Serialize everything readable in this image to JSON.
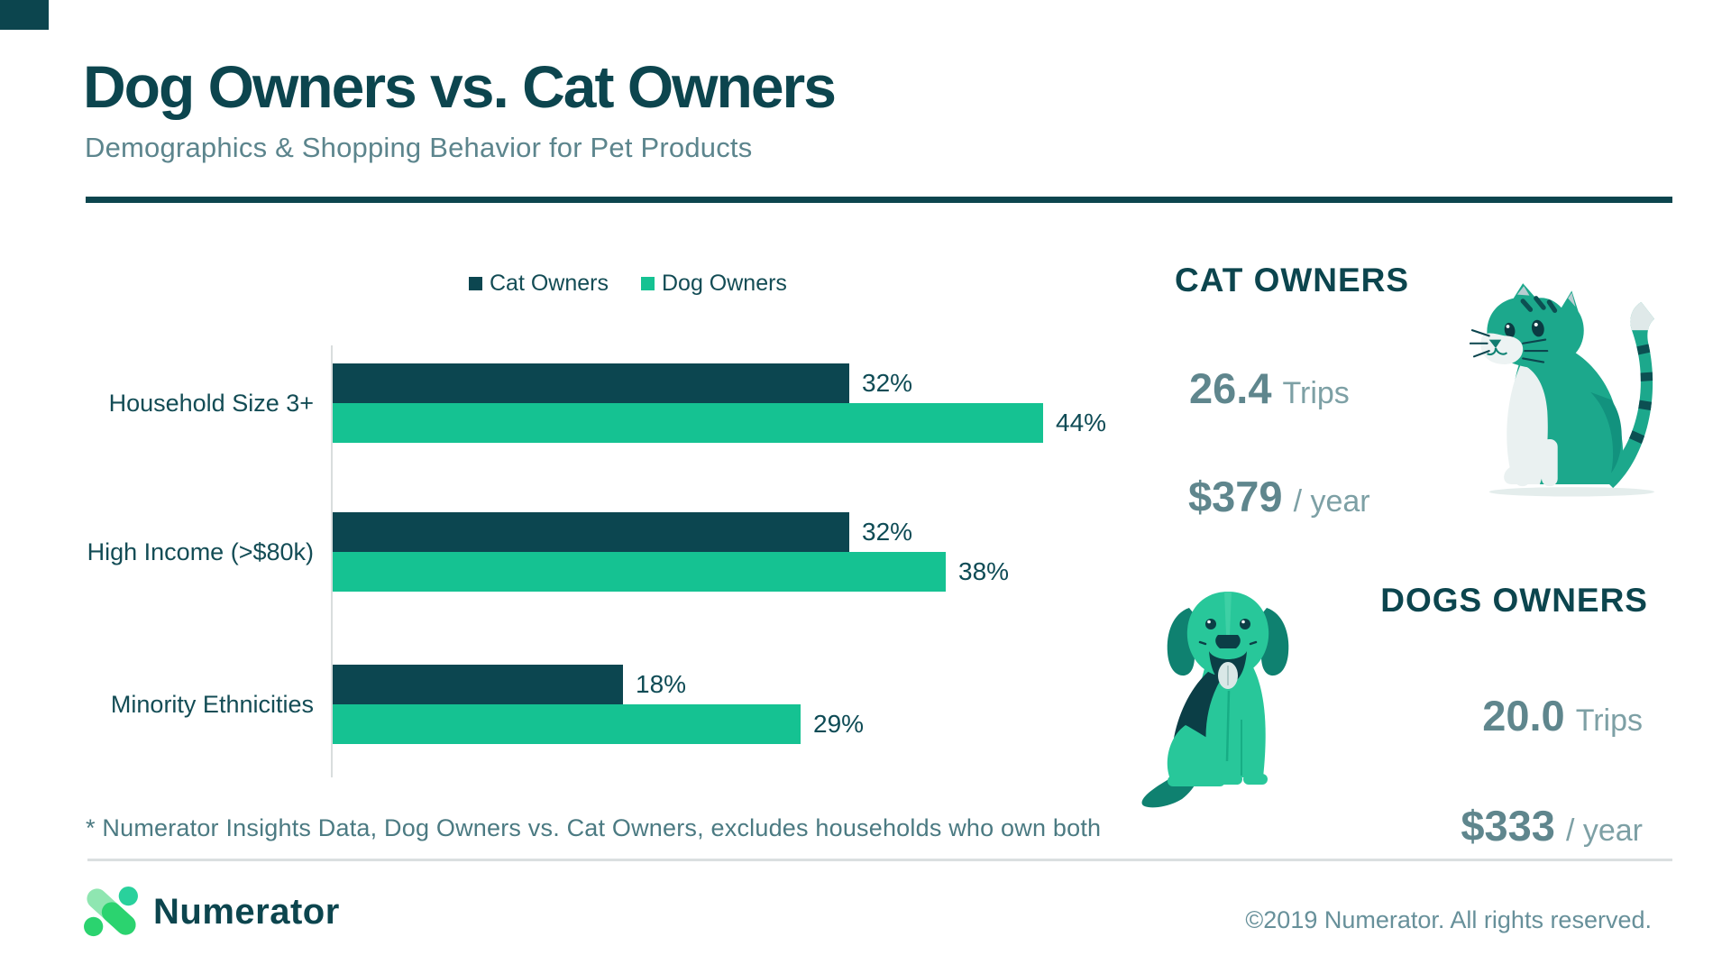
{
  "header": {
    "title": "Dog Owners vs. Cat Owners",
    "subtitle": "Demographics & Shopping Behavior for Pet Products"
  },
  "chart_data": {
    "type": "bar",
    "orientation": "horizontal",
    "categories": [
      "Household Size 3+",
      "High Income (>$80k)",
      "Minority Ethnicities"
    ],
    "series": [
      {
        "name": "Cat Owners",
        "color": "#0C4650",
        "values": [
          32,
          32,
          18
        ]
      },
      {
        "name": "Dog Owners",
        "color": "#15C292",
        "values": [
          44,
          38,
          29
        ]
      }
    ],
    "value_suffix": "%",
    "xlim": [
      0,
      50
    ],
    "legend_position": "top-center",
    "grid": false,
    "value_labels": true
  },
  "cat_panel": {
    "heading": "CAT OWNERS",
    "trips_value": "26.4",
    "trips_unit": "Trips",
    "spend_value": "$379",
    "spend_unit": "/ year"
  },
  "dog_panel": {
    "heading": "DOGS OWNERS",
    "trips_value": "20.0",
    "trips_unit": "Trips",
    "spend_value": "$333",
    "spend_unit": "/ year"
  },
  "footnote": "* Numerator Insights Data, Dog Owners vs. Cat Owners, excludes households who own both",
  "footer": {
    "brand": "Numerator",
    "copyright": "©2019 Numerator. All rights reserved."
  },
  "colors": {
    "dark_teal": "#0C454E",
    "green": "#15C292",
    "subtitle_gray": "#5C858D",
    "stat_number_gray": "#5F868D",
    "stat_unit_gray": "#7DA0A5",
    "footnote_teal": "#4B7A82",
    "copyright_gray": "#67909A",
    "divider_light": "#DADFE0",
    "axis_gray": "#D9DDDD",
    "logo_light_green": "#8FE6B1",
    "logo_bright_green": "#2BD36F",
    "logo_teal_green": "#29D19C"
  }
}
